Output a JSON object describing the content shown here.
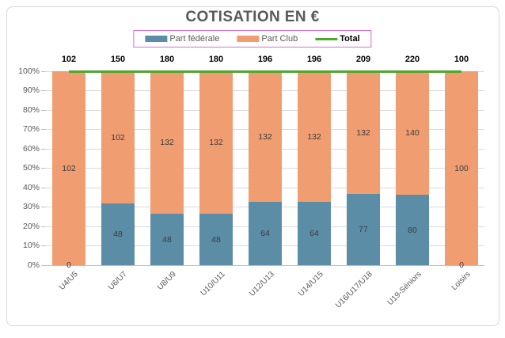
{
  "window": {
    "background": "#ffffff",
    "border_color": "#d8d8d8"
  },
  "chart_data": {
    "type": "bar",
    "subtype": "100%-stacked-column-with-line",
    "title": "COTISATION EN €",
    "title_color": "#595959",
    "categories": [
      "U4/U5",
      "U6/U7",
      "U8/U9",
      "U10/U11",
      "U12/U13",
      "U14/U15",
      "U16/U17/U18",
      "U19-Séniors",
      "Loisirs"
    ],
    "series": [
      {
        "name": "Part fédérale",
        "color": "#5b8da7",
        "values": [
          0,
          48,
          48,
          48,
          64,
          64,
          77,
          80,
          0
        ]
      },
      {
        "name": "Part Club",
        "color": "#f09d72",
        "values": [
          102,
          102,
          132,
          132,
          132,
          132,
          132,
          140,
          100
        ]
      }
    ],
    "line_series": {
      "name": "Total",
      "color": "#4ea72e",
      "values": [
        102,
        150,
        180,
        180,
        196,
        196,
        209,
        220,
        100
      ]
    },
    "y_axis": {
      "tick_labels": [
        "0%",
        "10%",
        "20%",
        "30%",
        "40%",
        "50%",
        "60%",
        "70%",
        "80%",
        "90%",
        "100%"
      ],
      "min": 0,
      "max": 100,
      "grid": true,
      "grid_color": "#dadada",
      "baseline_color": "#bfbfbf",
      "text_color": "#595959"
    },
    "x_axis": {
      "label_rotation_deg": 45,
      "text_color": "#595959"
    },
    "legend": {
      "position": "top",
      "border_color": "#d66fd4"
    },
    "data_label_color": "#3b3b3b",
    "total_label_color": "#000000"
  }
}
